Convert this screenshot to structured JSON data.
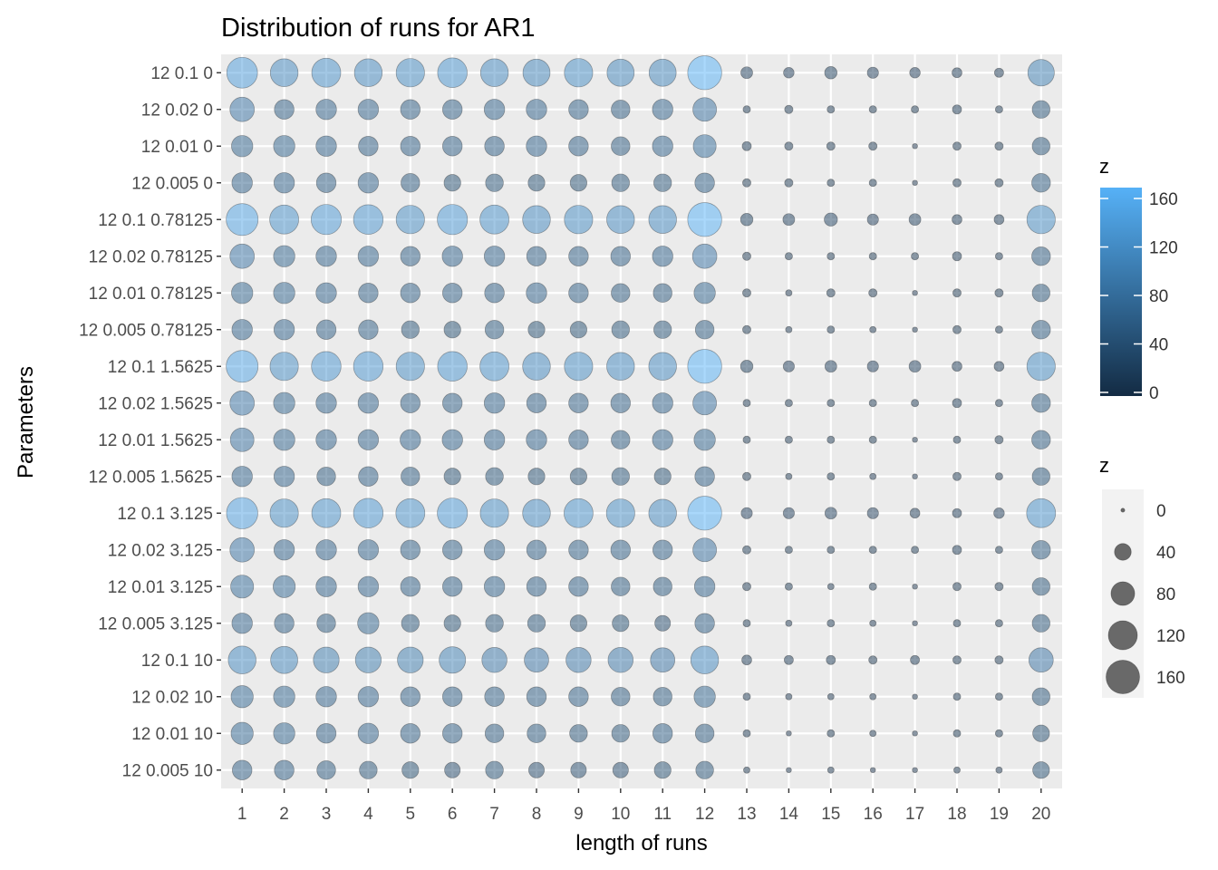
{
  "chart_data": {
    "type": "scatter",
    "title": "Distribution of runs for AR1",
    "xlabel": "length of runs",
    "ylabel": "Parameters",
    "x": [
      1,
      2,
      3,
      4,
      5,
      6,
      7,
      8,
      9,
      10,
      11,
      12,
      13,
      14,
      15,
      16,
      17,
      18,
      19,
      20
    ],
    "categories": [
      "12 0.1 0",
      "12 0.02 0",
      "12 0.01 0",
      "12 0.005 0",
      "12 0.1 0.78125",
      "12 0.02 0.78125",
      "12 0.01 0.78125",
      "12 0.005 0.78125",
      "12 0.1 1.5625",
      "12 0.02 1.5625",
      "12 0.01 1.5625",
      "12 0.005 1.5625",
      "12 0.1 3.125",
      "12 0.02 3.125",
      "12 0.01 3.125",
      "12 0.005 3.125",
      "12 0.1 10",
      "12 0.02 10",
      "12 0.01 10",
      "12 0.005 10"
    ],
    "z": [
      [
        135,
        110,
        120,
        110,
        115,
        125,
        110,
        105,
        115,
        105,
        105,
        165,
        20,
        16,
        22,
        18,
        16,
        14,
        12,
        100
      ],
      [
        85,
        55,
        60,
        60,
        55,
        55,
        60,
        60,
        55,
        50,
        60,
        80,
        8,
        10,
        8,
        8,
        8,
        12,
        8,
        45
      ],
      [
        65,
        65,
        60,
        55,
        55,
        55,
        55,
        60,
        55,
        50,
        60,
        75,
        12,
        10,
        10,
        10,
        4,
        10,
        10,
        45
      ],
      [
        60,
        60,
        55,
        60,
        50,
        40,
        45,
        40,
        40,
        45,
        45,
        55,
        10,
        10,
        8,
        8,
        4,
        10,
        10,
        50
      ],
      [
        145,
        120,
        130,
        125,
        115,
        130,
        120,
        110,
        115,
        110,
        110,
        165,
        22,
        20,
        25,
        18,
        20,
        14,
        14,
        115
      ],
      [
        85,
        65,
        60,
        60,
        55,
        60,
        60,
        55,
        55,
        55,
        60,
        85,
        10,
        8,
        8,
        8,
        8,
        12,
        8,
        50
      ],
      [
        65,
        65,
        60,
        55,
        55,
        55,
        55,
        60,
        55,
        50,
        50,
        65,
        10,
        6,
        10,
        10,
        4,
        10,
        10,
        45
      ],
      [
        60,
        60,
        55,
        55,
        45,
        40,
        50,
        40,
        40,
        45,
        45,
        50,
        10,
        6,
        8,
        6,
        4,
        10,
        8,
        50
      ],
      [
        145,
        115,
        125,
        125,
        115,
        125,
        120,
        110,
        115,
        110,
        110,
        165,
        22,
        18,
        20,
        18,
        20,
        14,
        14,
        115
      ],
      [
        85,
        65,
        60,
        60,
        55,
        55,
        60,
        55,
        55,
        55,
        60,
        80,
        8,
        8,
        8,
        8,
        8,
        12,
        8,
        50
      ],
      [
        80,
        65,
        60,
        60,
        60,
        60,
        60,
        60,
        55,
        50,
        60,
        65,
        8,
        8,
        8,
        8,
        4,
        8,
        10,
        50
      ],
      [
        60,
        60,
        50,
        55,
        50,
        40,
        45,
        40,
        40,
        45,
        40,
        55,
        10,
        6,
        8,
        6,
        4,
        10,
        8,
        45
      ],
      [
        140,
        115,
        120,
        125,
        120,
        130,
        115,
        110,
        120,
        115,
        110,
        165,
        18,
        18,
        20,
        18,
        14,
        12,
        16,
        120
      ],
      [
        85,
        60,
        60,
        60,
        55,
        55,
        60,
        55,
        55,
        55,
        55,
        80,
        10,
        8,
        8,
        8,
        8,
        12,
        8,
        50
      ],
      [
        75,
        70,
        60,
        60,
        55,
        55,
        60,
        55,
        55,
        50,
        50,
        60,
        10,
        8,
        6,
        8,
        4,
        10,
        10,
        45
      ],
      [
        60,
        55,
        50,
        65,
        45,
        40,
        45,
        45,
        40,
        40,
        35,
        55,
        8,
        6,
        8,
        6,
        4,
        8,
        8,
        45
      ],
      [
        110,
        105,
        95,
        95,
        95,
        100,
        90,
        85,
        90,
        90,
        85,
        110,
        14,
        12,
        12,
        10,
        12,
        10,
        10,
        85
      ],
      [
        70,
        65,
        60,
        60,
        55,
        55,
        55,
        55,
        55,
        50,
        50,
        65,
        8,
        6,
        6,
        6,
        4,
        8,
        8,
        45
      ],
      [
        70,
        65,
        55,
        60,
        55,
        55,
        50,
        50,
        45,
        45,
        55,
        50,
        8,
        4,
        8,
        6,
        4,
        8,
        8,
        40
      ],
      [
        55,
        55,
        50,
        45,
        40,
        35,
        45,
        35,
        35,
        35,
        40,
        45,
        6,
        4,
        6,
        4,
        4,
        6,
        6,
        40
      ]
    ],
    "color_legend": {
      "title": "z",
      "ticks": [
        0,
        40,
        80,
        120,
        160
      ],
      "low_color": "#132b43",
      "high_color": "#56b1f7"
    },
    "size_legend": {
      "title": "z",
      "ticks": [
        0,
        40,
        80,
        120,
        160
      ],
      "point_color": "#696969"
    },
    "xlim": [
      0.5,
      20.5
    ],
    "grid": true,
    "panel_background": "#ebebeb",
    "legend_position": "right"
  }
}
